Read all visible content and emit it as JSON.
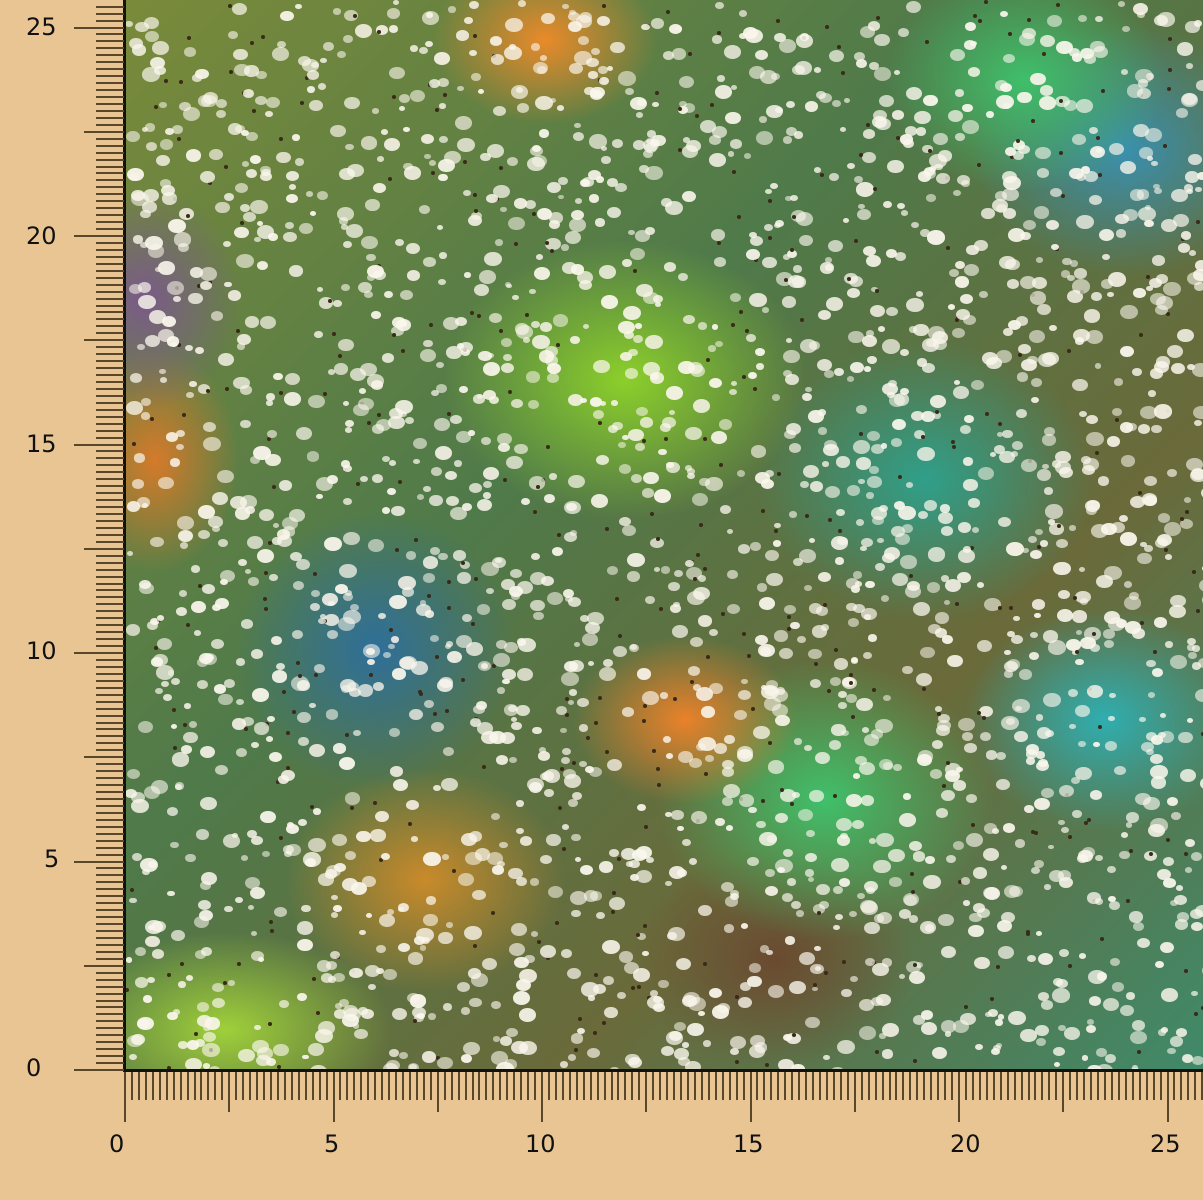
{
  "image": {
    "subject": "floral fabric swatch",
    "ruler_unit_labels_visible": true
  },
  "rulers": {
    "vertical": {
      "labels": [
        "0",
        "5",
        "10",
        "15",
        "20",
        "25"
      ]
    },
    "horizontal": {
      "labels": [
        "0",
        "5",
        "10",
        "15",
        "20",
        "25"
      ]
    }
  },
  "colors": {
    "background": "#e9c594",
    "tick": "#5a4628",
    "axis": "#111111"
  }
}
